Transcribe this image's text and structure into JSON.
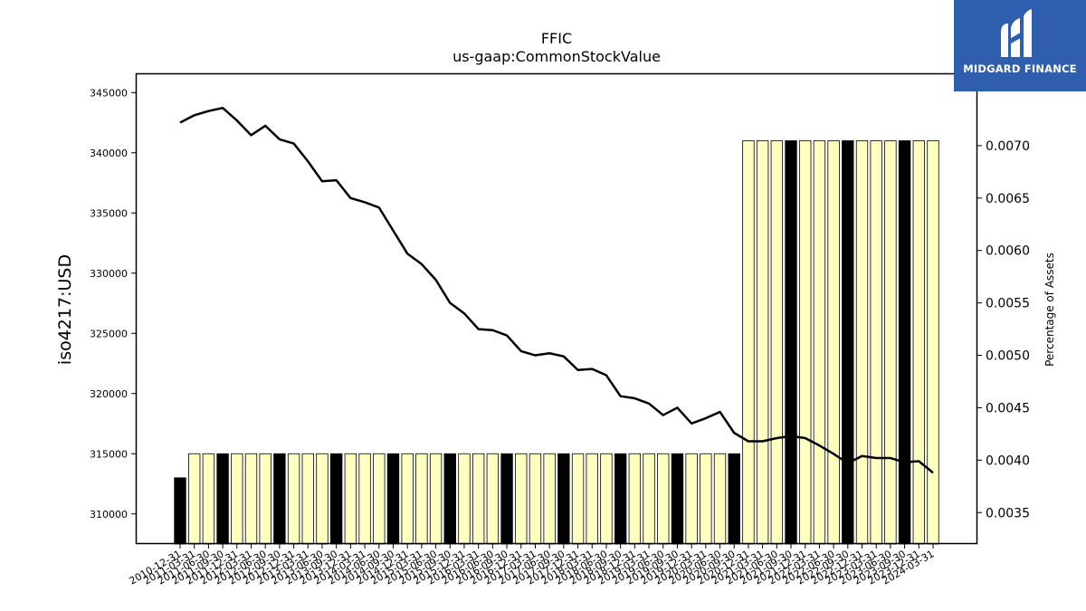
{
  "chart_data": {
    "type": "bar",
    "title": "FFIC",
    "subtitle": "us-gaap:CommonStockValue",
    "ylabel": "iso4217:USD",
    "y2label": "Percentage of Assets",
    "ylim": [
      307500,
      346600
    ],
    "y2lim": [
      0.0032,
      0.00769
    ],
    "yticks": [
      310000,
      315000,
      320000,
      325000,
      330000,
      335000,
      340000,
      345000
    ],
    "y2ticks": [
      "0.0035",
      "0.0040",
      "0.0045",
      "0.0050",
      "0.0055",
      "0.0060",
      "0.0065",
      "0.0070"
    ],
    "categories": [
      "2010-12-31",
      "2011-03-31",
      "2011-06-30",
      "2011-09-30",
      "2011-12-31",
      "2012-03-31",
      "2012-06-30",
      "2012-09-30",
      "2012-12-31",
      "2013-03-31",
      "2013-06-30",
      "2013-09-30",
      "2013-12-31",
      "2014-03-31",
      "2014-06-30",
      "2014-09-30",
      "2014-12-31",
      "2015-03-31",
      "2015-06-30",
      "2015-09-30",
      "2015-12-31",
      "2016-03-31",
      "2016-06-30",
      "2016-09-30",
      "2016-12-31",
      "2017-03-31",
      "2017-06-30",
      "2017-09-30",
      "2017-12-31",
      "2018-03-31",
      "2018-06-30",
      "2018-09-30",
      "2018-12-31",
      "2019-03-31",
      "2019-06-30",
      "2019-09-30",
      "2019-12-31",
      "2020-03-31",
      "2020-06-30",
      "2020-09-30",
      "2020-12-31",
      "2021-03-31",
      "2021-06-30",
      "2021-09-30",
      "2021-12-31",
      "2022-03-31",
      "2022-06-30",
      "2022-09-30",
      "2022-12-31",
      "2023-03-31",
      "2023-06-30",
      "2023-09-30",
      "2023-12-31",
      "2024-03-31"
    ],
    "series": [
      {
        "type": "bar",
        "values": [
          313000,
          315000,
          315000,
          315000,
          315000,
          315000,
          315000,
          315000,
          315000,
          315000,
          315000,
          315000,
          315000,
          315000,
          315000,
          315000,
          315000,
          315000,
          315000,
          315000,
          315000,
          315000,
          315000,
          315000,
          315000,
          315000,
          315000,
          315000,
          315000,
          315000,
          315000,
          315000,
          315000,
          315000,
          315000,
          315000,
          315000,
          315000,
          315000,
          315000,
          341000,
          341000,
          341000,
          341000,
          341000,
          341000,
          341000,
          341000,
          341000,
          341000,
          341000,
          341000,
          341000,
          341000
        ],
        "highlight": [
          1,
          0,
          0,
          1,
          0,
          0,
          0,
          1,
          0,
          0,
          0,
          1,
          0,
          0,
          0,
          1,
          0,
          0,
          0,
          1,
          0,
          0,
          0,
          1,
          0,
          0,
          0,
          1,
          0,
          0,
          0,
          1,
          0,
          0,
          0,
          1,
          0,
          0,
          0,
          1,
          0,
          0,
          0,
          1,
          0,
          0,
          0,
          1,
          0,
          0,
          0,
          1,
          0,
          0
        ],
        "highlight_color": "#000000",
        "color": "#ffffbf"
      },
      {
        "type": "line",
        "axis": "right",
        "color": "#000000",
        "values": [
          0.00722,
          0.00729,
          0.00733,
          0.00736,
          0.00724,
          0.0071,
          0.00719,
          0.00706,
          0.00702,
          0.00685,
          0.00666,
          0.00667,
          0.0065,
          0.00646,
          0.00641,
          0.00619,
          0.00597,
          0.00587,
          0.00572,
          0.0055,
          0.0054,
          0.00525,
          0.00524,
          0.00519,
          0.00504,
          0.005,
          0.00502,
          0.00499,
          0.00486,
          0.00487,
          0.00481,
          0.00461,
          0.00459,
          0.00454,
          0.00443,
          0.0045,
          0.00435,
          0.0044,
          0.00446,
          0.00426,
          0.00418,
          0.00418,
          0.00421,
          0.00423,
          0.00421,
          0.00414,
          0.00406,
          0.00397,
          0.00404,
          0.00402,
          0.00402,
          0.00398,
          0.00399,
          0.00388
        ]
      }
    ]
  },
  "logo": {
    "text": "MIDGARD FINANCE"
  }
}
